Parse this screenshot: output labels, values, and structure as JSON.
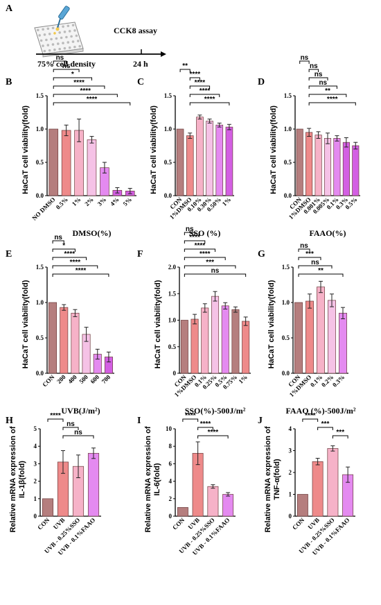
{
  "panel_a": {
    "label": "A",
    "assay": "CCK8 assay",
    "start": "75% cell density",
    "end": "24 h"
  },
  "colors": {
    "brown": "#b57e7e",
    "salmon": "#ee8a8a",
    "pink": "#f6b2c8",
    "lightpink": "#f5c2e6",
    "violet": "#e48af0",
    "magenta": "#d35fe3",
    "red": "#e87474"
  },
  "chart_data": [
    {
      "id": "B",
      "label": "B",
      "type": "bar",
      "ylabel": "HaCaT cell viability(fold)",
      "xlabel": "DMSO(%)",
      "ylim": [
        0,
        1.5
      ],
      "yticks": [
        "0.0",
        "0.5",
        "1.0",
        "1.5"
      ],
      "categories": [
        "NO DMSO",
        "0.5%",
        "1%",
        "2%",
        "3%",
        "4%",
        "5%"
      ],
      "values": [
        1.0,
        0.98,
        0.98,
        0.84,
        0.42,
        0.08,
        0.07
      ],
      "errors": [
        0.0,
        0.08,
        0.17,
        0.05,
        0.08,
        0.04,
        0.04
      ],
      "colors": [
        "#b57e7e",
        "#ee8a8a",
        "#f6b2c8",
        "#f5c2e6",
        "#e48af0",
        "#d35fe3",
        "#d35fe3"
      ],
      "significance": [
        {
          "from": 0,
          "to": 1,
          "text": "ns"
        },
        {
          "from": 0,
          "to": 2,
          "text": "ns"
        },
        {
          "from": 0,
          "to": 3,
          "text": "*"
        },
        {
          "from": 0,
          "to": 4,
          "text": "****"
        },
        {
          "from": 0,
          "to": 5,
          "text": "****"
        },
        {
          "from": 0,
          "to": 6,
          "text": "****"
        }
      ]
    },
    {
      "id": "C",
      "label": "C",
      "type": "bar",
      "ylabel": "HaCaT cell viability(fold)",
      "xlabel": "SSO (%)",
      "ylim": [
        0,
        1.5
      ],
      "yticks": [
        "0.0",
        "0.5",
        "1.0",
        "1.5"
      ],
      "categories": [
        "CON",
        "1%DMSO",
        "0.10%",
        "0.30%",
        "0.50%",
        "1%"
      ],
      "values": [
        1.0,
        0.9,
        1.18,
        1.12,
        1.06,
        1.03
      ],
      "errors": [
        0.0,
        0.04,
        0.03,
        0.03,
        0.03,
        0.04
      ],
      "colors": [
        "#b57e7e",
        "#ee8a8a",
        "#f6b2c8",
        "#f5c2e6",
        "#e48af0",
        "#d35fe3"
      ],
      "significance": [
        {
          "from": 0,
          "to": 1,
          "text": "**"
        },
        {
          "from": 1,
          "to": 2,
          "text": "****"
        },
        {
          "from": 1,
          "to": 3,
          "text": "****"
        },
        {
          "from": 1,
          "to": 4,
          "text": "****"
        },
        {
          "from": 1,
          "to": 5,
          "text": "****"
        }
      ]
    },
    {
      "id": "D",
      "label": "D",
      "type": "bar",
      "ylabel": "HaCaT cell viability(fold)",
      "xlabel": "FAAO(%)",
      "ylim": [
        0,
        1.5
      ],
      "yticks": [
        "0.0",
        "0.5",
        "1.0",
        "1.5"
      ],
      "categories": [
        "CON",
        "1%DMSO",
        "0.001%",
        "0.005%",
        "0.1%",
        "0.3%",
        "0.5%"
      ],
      "values": [
        1.0,
        0.95,
        0.91,
        0.86,
        0.86,
        0.8,
        0.75
      ],
      "errors": [
        0.0,
        0.06,
        0.05,
        0.08,
        0.04,
        0.07,
        0.05
      ],
      "colors": [
        "#b57e7e",
        "#ee8a8a",
        "#f6b2c8",
        "#f5c2e6",
        "#e48af0",
        "#d35fe3",
        "#d35fe3"
      ],
      "significance": [
        {
          "from": 0,
          "to": 1,
          "text": "ns"
        },
        {
          "from": 1,
          "to": 2,
          "text": "ns"
        },
        {
          "from": 1,
          "to": 3,
          "text": "ns"
        },
        {
          "from": 1,
          "to": 4,
          "text": "ns"
        },
        {
          "from": 1,
          "to": 5,
          "text": "**"
        },
        {
          "from": 1,
          "to": 6,
          "text": "****"
        }
      ]
    },
    {
      "id": "E",
      "label": "E",
      "type": "bar",
      "ylabel": "HaCaT cell viability(fold)",
      "xlabel": "UVB(J/m²)",
      "ylim": [
        0,
        1.5
      ],
      "yticks": [
        "0.0",
        "0.5",
        "1.0",
        "1.5"
      ],
      "categories": [
        "CON",
        "200",
        "400",
        "500",
        "600",
        "700"
      ],
      "values": [
        1.0,
        0.93,
        0.85,
        0.55,
        0.27,
        0.23
      ],
      "errors": [
        0.0,
        0.04,
        0.05,
        0.1,
        0.07,
        0.07
      ],
      "colors": [
        "#b57e7e",
        "#ee8a8a",
        "#f6b2c8",
        "#f5c2e6",
        "#e48af0",
        "#d35fe3"
      ],
      "significance": [
        {
          "from": 0,
          "to": 1,
          "text": "ns"
        },
        {
          "from": 0,
          "to": 2,
          "text": "*"
        },
        {
          "from": 0,
          "to": 3,
          "text": "****"
        },
        {
          "from": 0,
          "to": 4,
          "text": "****"
        },
        {
          "from": 0,
          "to": 5,
          "text": "****"
        }
      ]
    },
    {
      "id": "F",
      "label": "F",
      "type": "bar",
      "ylabel": "HaCaT cell viability(fold)",
      "xlabel": "SSO(%)-500J/m²",
      "ylim": [
        0,
        2.0
      ],
      "yticks": [
        "0",
        "0.5",
        "1.0",
        "1.5",
        "2.0"
      ],
      "categories": [
        "CON",
        "1%DMSO",
        "0.1%",
        "0.25%",
        "0.5%",
        "0.75%",
        "1%"
      ],
      "values": [
        1.0,
        1.02,
        1.23,
        1.45,
        1.27,
        1.2,
        0.98
      ],
      "errors": [
        0.0,
        0.09,
        0.08,
        0.09,
        0.06,
        0.05,
        0.08
      ],
      "colors": [
        "#b57e7e",
        "#ee8a8a",
        "#f6b2c8",
        "#f5c2e6",
        "#e48af0",
        "#b57e7e",
        "#ee8a8a"
      ],
      "significance": [
        {
          "from": 0,
          "to": 1,
          "text": "ns"
        },
        {
          "from": 0,
          "to": 2,
          "text": "****"
        },
        {
          "from": 0,
          "to": 3,
          "text": "****"
        },
        {
          "from": 0,
          "to": 4,
          "text": "****"
        },
        {
          "from": 0,
          "to": 5,
          "text": "***"
        },
        {
          "from": 0,
          "to": 6,
          "text": "ns"
        }
      ]
    },
    {
      "id": "G",
      "label": "G",
      "type": "bar",
      "ylabel": "HaCaT cell viability(fold)",
      "xlabel": "FAAO (%)-500J/m²",
      "ylim": [
        0,
        1.5
      ],
      "yticks": [
        "0.0",
        "0.5",
        "1.0",
        "1.5"
      ],
      "categories": [
        "CON",
        "1%DMSO",
        "0.1%",
        "0.2%",
        "0.3%"
      ],
      "values": [
        1.0,
        1.02,
        1.22,
        1.03,
        0.85
      ],
      "errors": [
        0.0,
        0.1,
        0.08,
        0.09,
        0.08
      ],
      "colors": [
        "#b57e7e",
        "#ee8a8a",
        "#f6b2c8",
        "#f5c2e6",
        "#e48af0"
      ],
      "significance": [
        {
          "from": 0,
          "to": 1,
          "text": "ns"
        },
        {
          "from": 0,
          "to": 2,
          "text": "***"
        },
        {
          "from": 0,
          "to": 3,
          "text": "ns"
        },
        {
          "from": 0,
          "to": 4,
          "text": "**"
        }
      ]
    },
    {
      "id": "H",
      "label": "H",
      "type": "bar",
      "ylabel_lines": [
        "Relative mRNA expression of",
        "IL-1β(fold)"
      ],
      "xlabel": "",
      "ylim": [
        0,
        5
      ],
      "yticks": [
        "0",
        "1",
        "2",
        "3",
        "4",
        "5"
      ],
      "categories": [
        "CON",
        "UVB",
        "UVB - 0.25%SSO",
        "UVB - 0.1%FAAO"
      ],
      "values": [
        1.0,
        3.1,
        2.85,
        3.6
      ],
      "errors": [
        0.0,
        0.65,
        0.65,
        0.3
      ],
      "colors": [
        "#b57e7e",
        "#ee8a8a",
        "#f6b2c8",
        "#e48af0"
      ],
      "significance": [
        {
          "from": 0,
          "to": 1,
          "text": "****"
        },
        {
          "from": 1,
          "to": 2,
          "text": "ns"
        },
        {
          "from": 1,
          "to": 3,
          "text": "ns"
        }
      ]
    },
    {
      "id": "I",
      "label": "I",
      "type": "bar",
      "ylabel_lines": [
        "Relative mRNA expression of",
        "IL-6(fold)"
      ],
      "xlabel": "",
      "ylim": [
        0,
        10
      ],
      "yticks": [
        "0",
        "2",
        "4",
        "6",
        "8",
        "10"
      ],
      "categories": [
        "CON",
        "UVB",
        "UVB - 0.25%SSO",
        "UVB - 0.1%FAAO"
      ],
      "values": [
        1.0,
        7.2,
        3.4,
        2.5
      ],
      "errors": [
        0.0,
        1.3,
        0.2,
        0.2
      ],
      "colors": [
        "#b57e7e",
        "#ee8a8a",
        "#f6b2c8",
        "#e48af0"
      ],
      "significance": [
        {
          "from": 0,
          "to": 1,
          "text": "****"
        },
        {
          "from": 1,
          "to": 2,
          "text": "****"
        },
        {
          "from": 1,
          "to": 3,
          "text": "****"
        }
      ]
    },
    {
      "id": "J",
      "label": "J",
      "type": "bar",
      "ylabel_lines": [
        "Relative mRNA expression of",
        "TNF-α(fold)"
      ],
      "xlabel": "",
      "ylim": [
        0,
        4
      ],
      "yticks": [
        "0",
        "1",
        "2",
        "3",
        "4"
      ],
      "categories": [
        "CON",
        "UVB",
        "UVB - 0.25%SSO",
        "UVB - 0.1%FAAO"
      ],
      "values": [
        1.0,
        2.5,
        3.1,
        1.9
      ],
      "errors": [
        0.0,
        0.15,
        0.12,
        0.35
      ],
      "colors": [
        "#b57e7e",
        "#ee8a8a",
        "#f6b2c8",
        "#e48af0"
      ],
      "significance": [
        {
          "from": 0,
          "to": 1,
          "text": "****"
        },
        {
          "from": 1,
          "to": 2,
          "text": "***"
        },
        {
          "from": 2,
          "to": 3,
          "text": "***"
        }
      ]
    }
  ]
}
